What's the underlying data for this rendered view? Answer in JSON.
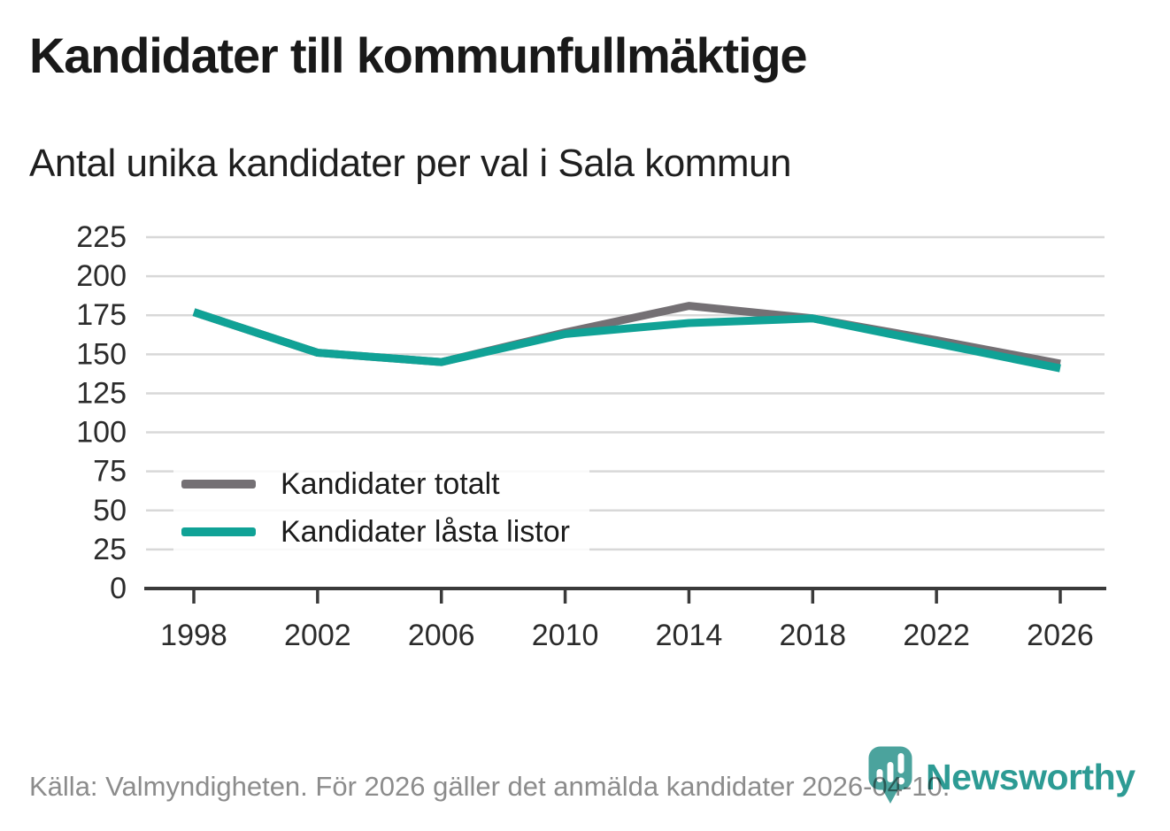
{
  "header": {
    "title": "Kandidater till kommunfullmäktige",
    "subtitle": "Antal unika kandidater per val i Sala kommun"
  },
  "chart_data": {
    "type": "line",
    "x": [
      1998,
      2002,
      2006,
      2010,
      2014,
      2018,
      2022,
      2026
    ],
    "xticks": [
      "1998",
      "2002",
      "2006",
      "2010",
      "2014",
      "2018",
      "2022",
      "2026"
    ],
    "series": [
      {
        "name": "Kandidater totalt",
        "color": "#747074",
        "values": [
          177,
          151,
          145,
          164,
          181,
          173,
          159,
          144
        ]
      },
      {
        "name": "Kandidater låsta listor",
        "color": "#10A296",
        "values": [
          177,
          151,
          145,
          163,
          170,
          173,
          157,
          141
        ]
      }
    ],
    "ylim": [
      0,
      225
    ],
    "ytick_step": 25,
    "yticks": [
      0,
      25,
      50,
      75,
      100,
      125,
      150,
      175,
      200,
      225
    ],
    "xlabel": "",
    "ylabel": "",
    "grid": true,
    "legend_position": "inside-left-middle"
  },
  "footer": {
    "source": "Källa: Valmyndigheten. För 2026 gäller det anmälda kandidater 2026-04-10.",
    "brand": "Newsworthy",
    "brand_icon": "newsworthy-pin-icon",
    "brand_color": "#2D9B94",
    "brand_pin_color": "#4BA39D"
  }
}
